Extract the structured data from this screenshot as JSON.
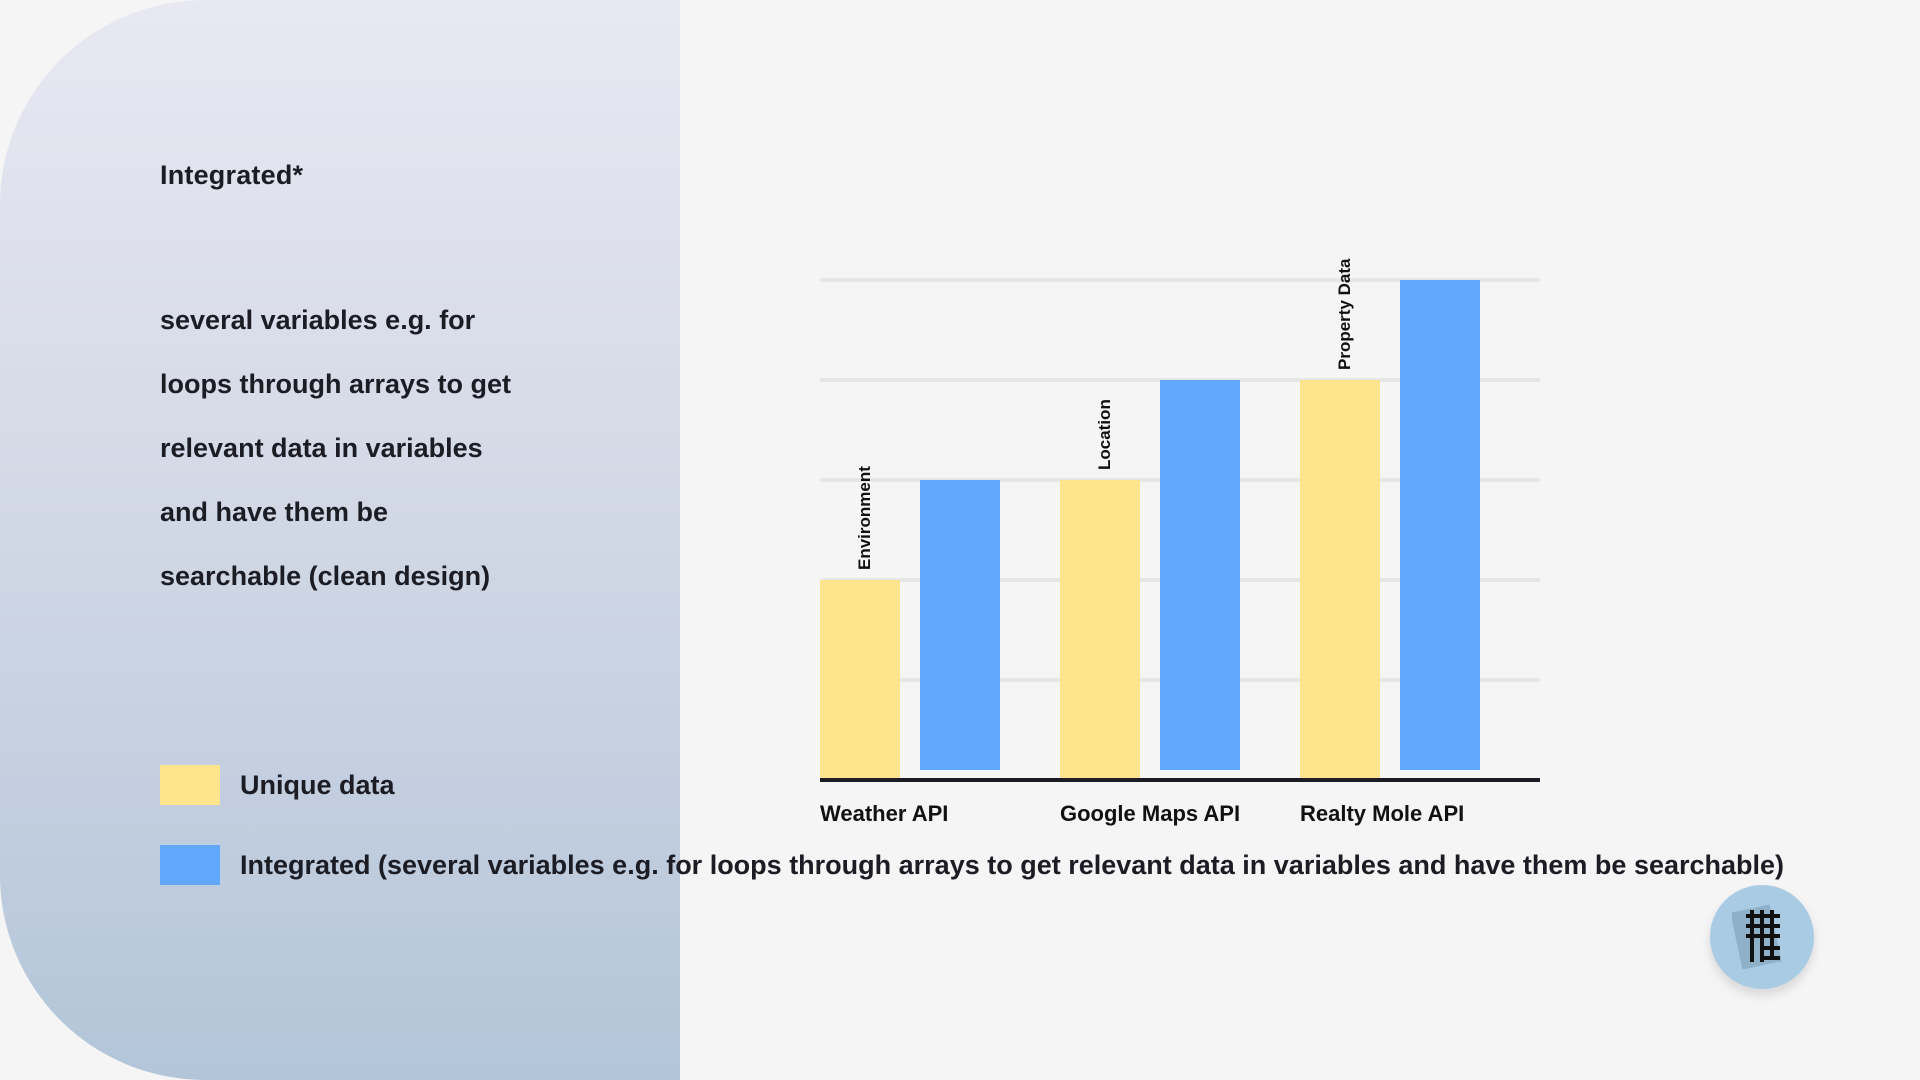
{
  "slide": {
    "heading": "Integrated*",
    "description_lines": [
      "several variables e.g. for",
      "loops through arrays to get",
      "relevant data in variables",
      "and have them be",
      "searchable (clean design)"
    ]
  },
  "legend": [
    {
      "label": "Unique data",
      "color": "#ffe48e"
    },
    {
      "label": "Integrated (several variables e.g. for loops through arrays to get relevant data in variables and have them be searchable)",
      "color": "#60a8fc"
    }
  ],
  "colors": {
    "unique": "#ffe48e",
    "integrated": "#60a8fc",
    "gridline": "#e6e6e6",
    "axis": "#1c1c24",
    "left_panel_top": "#e8e8f2",
    "left_panel_bottom": "#b3c5d9"
  },
  "chart_data": {
    "type": "bar",
    "categories": [
      "Weather API",
      "Google Maps API",
      "Realty Mole API"
    ],
    "series": [
      {
        "name": "Unique data",
        "values": [
          2,
          3,
          4
        ],
        "bar_labels": [
          "Environment",
          "Location",
          "Property Data"
        ]
      },
      {
        "name": "Integrated (several variables e.g. for loops through arrays to get relevant data in variables and have them be searchable)",
        "values": [
          3,
          4,
          5
        ]
      }
    ],
    "ylim": [
      0,
      5
    ],
    "grid": true,
    "legend_position": "left",
    "title": "",
    "xlabel": "",
    "ylabel": ""
  },
  "logo": {
    "icon": "building-grid-icon"
  }
}
